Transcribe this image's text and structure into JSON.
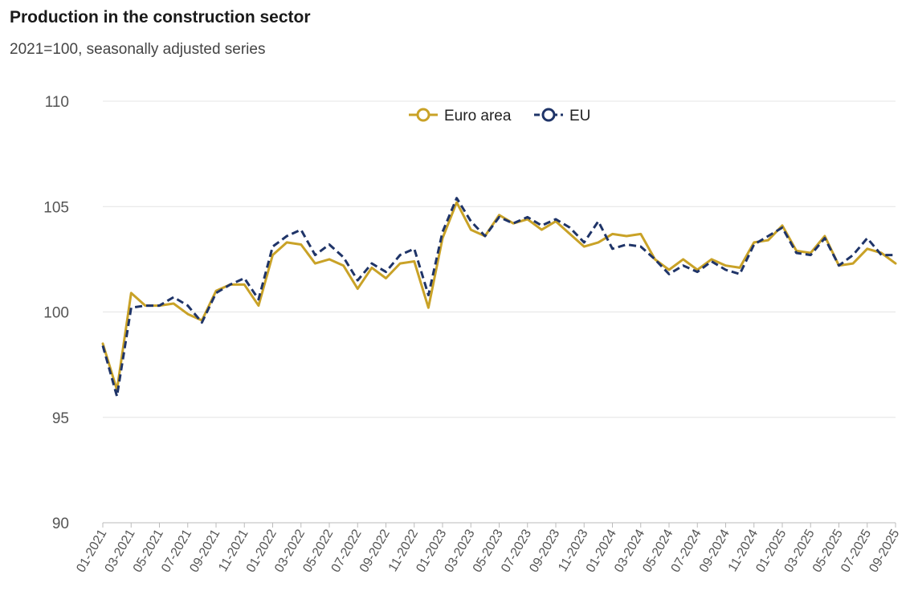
{
  "chart_data": {
    "type": "line",
    "title": "Production in the construction sector",
    "subtitle": "2021=100, seasonally adjusted series",
    "xlabel": "",
    "ylabel": "",
    "ylim": [
      90,
      110
    ],
    "yticks": [
      90,
      95,
      100,
      105,
      110
    ],
    "grid": true,
    "legend_position": "top-center",
    "x": [
      "01-2021",
      "02-2021",
      "03-2021",
      "04-2021",
      "05-2021",
      "06-2021",
      "07-2021",
      "08-2021",
      "09-2021",
      "10-2021",
      "11-2021",
      "12-2021",
      "01-2022",
      "02-2022",
      "03-2022",
      "04-2022",
      "05-2022",
      "06-2022",
      "07-2022",
      "08-2022",
      "09-2022",
      "10-2022",
      "11-2022",
      "12-2022",
      "01-2023",
      "02-2023",
      "03-2023",
      "04-2023",
      "05-2023",
      "06-2023",
      "07-2023",
      "08-2023",
      "09-2023",
      "10-2023",
      "11-2023",
      "12-2023",
      "01-2024",
      "02-2024",
      "03-2024",
      "04-2024",
      "05-2024",
      "06-2024",
      "07-2024",
      "08-2024",
      "09-2024",
      "10-2024",
      "11-2024",
      "12-2024",
      "01-2025",
      "02-2025",
      "03-2025",
      "04-2025",
      "05-2025",
      "06-2025",
      "07-2025",
      "08-2025",
      "09-2025"
    ],
    "xtick_labels": [
      "01-2021",
      "03-2021",
      "05-2021",
      "07-2021",
      "09-2021",
      "11-2021",
      "01-2022",
      "03-2022",
      "05-2022",
      "07-2022",
      "09-2022",
      "11-2022",
      "01-2023",
      "03-2023",
      "05-2023",
      "07-2023",
      "09-2023",
      "11-2023",
      "01-2024",
      "03-2024",
      "05-2024",
      "07-2024",
      "09-2024",
      "11-2024",
      "01-2025",
      "03-2025",
      "05-2025",
      "07-2025",
      "09-2025"
    ],
    "series": [
      {
        "name": "Euro area",
        "color": "#c9a227",
        "style": "solid",
        "values": [
          98.5,
          96.3,
          100.9,
          100.3,
          100.3,
          100.4,
          99.9,
          99.6,
          101.0,
          101.3,
          101.3,
          100.3,
          102.7,
          103.3,
          103.2,
          102.3,
          102.5,
          102.2,
          101.1,
          102.1,
          101.6,
          102.3,
          102.4,
          100.2,
          103.5,
          105.2,
          103.9,
          103.6,
          104.6,
          104.2,
          104.4,
          103.9,
          104.3,
          103.7,
          103.1,
          103.3,
          103.7,
          103.6,
          103.7,
          102.5,
          102.0,
          102.5,
          102.0,
          102.5,
          102.2,
          102.1,
          103.3,
          103.4,
          104.1,
          102.9,
          102.8,
          103.6,
          102.2,
          102.3,
          103.0,
          102.8,
          102.3
        ]
      },
      {
        "name": "EU",
        "color": "#1f3468",
        "style": "dashed",
        "values": [
          98.4,
          96.0,
          100.2,
          100.3,
          100.3,
          100.7,
          100.3,
          99.5,
          100.9,
          101.3,
          101.6,
          100.6,
          103.1,
          103.6,
          103.9,
          102.7,
          103.2,
          102.6,
          101.5,
          102.3,
          101.9,
          102.7,
          103.0,
          100.8,
          103.8,
          105.4,
          104.3,
          103.6,
          104.5,
          104.2,
          104.5,
          104.1,
          104.4,
          104.0,
          103.3,
          104.3,
          103.0,
          103.2,
          103.1,
          102.5,
          101.8,
          102.2,
          101.9,
          102.4,
          102.0,
          101.8,
          103.2,
          103.6,
          104.0,
          102.8,
          102.7,
          103.5,
          102.2,
          102.7,
          103.5,
          102.7,
          102.7
        ]
      }
    ]
  }
}
